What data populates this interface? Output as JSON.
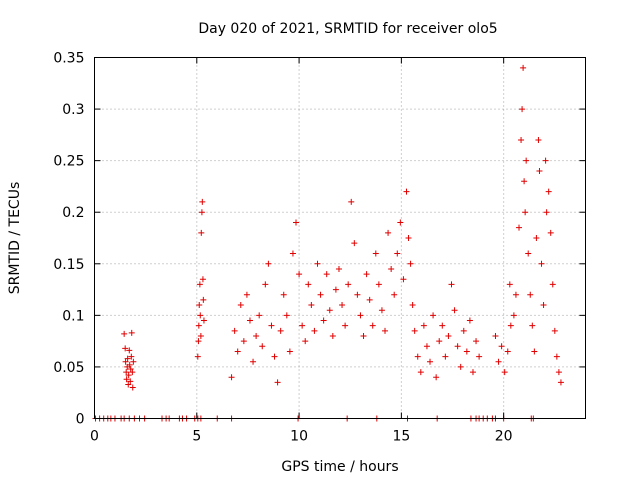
{
  "chart_data": {
    "type": "scatter",
    "title": "Day 020 of 2021, SRMTID for receiver olo5",
    "xlabel": "GPS time / hours",
    "ylabel": "SRMTID / TECUs",
    "xlim": [
      0,
      24
    ],
    "ylim": [
      0,
      0.35
    ],
    "x_ticks": [
      0,
      5,
      10,
      15,
      20
    ],
    "x_tick_labels": [
      "0",
      "5",
      "10",
      "15",
      "20"
    ],
    "y_ticks": [
      0,
      0.05,
      0.1,
      0.15,
      0.2,
      0.25,
      0.3,
      0.35
    ],
    "y_tick_labels": [
      "0",
      "0.05",
      "0.1",
      "0.15",
      "0.2",
      "0.25",
      "0.3",
      "0.35"
    ],
    "grid": true,
    "marker": "+",
    "series_color": "#e00000",
    "series": [
      {
        "name": "SRMTID",
        "points": [
          [
            0.05,
            0
          ],
          [
            0.25,
            0
          ],
          [
            0.45,
            0
          ],
          [
            0.65,
            0
          ],
          [
            0.8,
            0
          ],
          [
            1.0,
            0
          ],
          [
            1.3,
            0
          ],
          [
            1.45,
            0
          ],
          [
            1.7,
            0
          ],
          [
            1.95,
            0
          ],
          [
            2.2,
            0
          ],
          [
            2.45,
            0
          ],
          [
            3.3,
            0
          ],
          [
            3.5,
            0
          ],
          [
            3.65,
            0
          ],
          [
            4.15,
            0
          ],
          [
            4.3,
            0
          ],
          [
            4.5,
            0
          ],
          [
            4.9,
            0
          ],
          [
            5.05,
            0
          ],
          [
            5.2,
            0
          ],
          [
            6.0,
            0
          ],
          [
            6.7,
            0
          ],
          [
            9.95,
            0
          ],
          [
            12.35,
            0
          ],
          [
            13.8,
            0
          ],
          [
            15.3,
            0
          ],
          [
            16.75,
            0
          ],
          [
            18.4,
            0
          ],
          [
            18.65,
            0
          ],
          [
            18.8,
            0
          ],
          [
            19.0,
            0
          ],
          [
            19.2,
            0
          ],
          [
            19.45,
            0
          ],
          [
            19.6,
            0
          ],
          [
            20.0,
            0
          ],
          [
            21.35,
            0
          ],
          [
            21.45,
            0
          ],
          [
            1.45,
            0.082
          ],
          [
            1.5,
            0.068
          ],
          [
            1.52,
            0.055
          ],
          [
            1.55,
            0.045
          ],
          [
            1.57,
            0.038
          ],
          [
            1.6,
            0.05
          ],
          [
            1.62,
            0.058
          ],
          [
            1.65,
            0.033
          ],
          [
            1.67,
            0.042
          ],
          [
            1.7,
            0.066
          ],
          [
            1.72,
            0.052
          ],
          [
            1.75,
            0.036
          ],
          [
            1.77,
            0.048
          ],
          [
            1.8,
            0.06
          ],
          [
            1.82,
            0.083
          ],
          [
            1.85,
            0.045
          ],
          [
            1.87,
            0.03
          ],
          [
            1.9,
            0.055
          ],
          [
            5.05,
            0.06
          ],
          [
            5.08,
            0.075
          ],
          [
            5.1,
            0.09
          ],
          [
            5.12,
            0.11
          ],
          [
            5.15,
            0.13
          ],
          [
            5.17,
            0.1
          ],
          [
            5.2,
            0.08
          ],
          [
            5.22,
            0.18
          ],
          [
            5.25,
            0.2
          ],
          [
            5.27,
            0.21
          ],
          [
            5.3,
            0.135
          ],
          [
            5.32,
            0.115
          ],
          [
            5.35,
            0.095
          ],
          [
            6.7,
            0.04
          ],
          [
            6.85,
            0.085
          ],
          [
            7.0,
            0.065
          ],
          [
            7.15,
            0.11
          ],
          [
            7.3,
            0.075
          ],
          [
            7.45,
            0.12
          ],
          [
            7.6,
            0.095
          ],
          [
            7.75,
            0.055
          ],
          [
            7.9,
            0.08
          ],
          [
            8.05,
            0.1
          ],
          [
            8.2,
            0.07
          ],
          [
            8.35,
            0.13
          ],
          [
            8.5,
            0.15
          ],
          [
            8.65,
            0.09
          ],
          [
            8.8,
            0.06
          ],
          [
            8.95,
            0.035
          ],
          [
            9.1,
            0.085
          ],
          [
            9.25,
            0.12
          ],
          [
            9.4,
            0.1
          ],
          [
            9.55,
            0.065
          ],
          [
            9.7,
            0.16
          ],
          [
            9.85,
            0.19
          ],
          [
            10.0,
            0.14
          ],
          [
            10.15,
            0.09
          ],
          [
            10.3,
            0.075
          ],
          [
            10.45,
            0.13
          ],
          [
            10.6,
            0.11
          ],
          [
            10.75,
            0.085
          ],
          [
            10.9,
            0.15
          ],
          [
            11.05,
            0.12
          ],
          [
            11.2,
            0.095
          ],
          [
            11.35,
            0.14
          ],
          [
            11.5,
            0.105
          ],
          [
            11.65,
            0.08
          ],
          [
            11.8,
            0.125
          ],
          [
            11.95,
            0.145
          ],
          [
            12.1,
            0.11
          ],
          [
            12.25,
            0.09
          ],
          [
            12.4,
            0.13
          ],
          [
            12.55,
            0.21
          ],
          [
            12.7,
            0.17
          ],
          [
            12.85,
            0.12
          ],
          [
            13.0,
            0.1
          ],
          [
            13.15,
            0.08
          ],
          [
            13.3,
            0.14
          ],
          [
            13.45,
            0.115
          ],
          [
            13.6,
            0.09
          ],
          [
            13.75,
            0.16
          ],
          [
            13.9,
            0.13
          ],
          [
            14.05,
            0.105
          ],
          [
            14.2,
            0.085
          ],
          [
            14.35,
            0.18
          ],
          [
            14.5,
            0.145
          ],
          [
            14.65,
            0.12
          ],
          [
            14.8,
            0.16
          ],
          [
            14.95,
            0.19
          ],
          [
            15.1,
            0.135
          ],
          [
            15.25,
            0.22
          ],
          [
            15.35,
            0.175
          ],
          [
            15.45,
            0.15
          ],
          [
            15.55,
            0.11
          ],
          [
            15.65,
            0.085
          ],
          [
            15.8,
            0.06
          ],
          [
            15.95,
            0.045
          ],
          [
            16.1,
            0.09
          ],
          [
            16.25,
            0.07
          ],
          [
            16.4,
            0.055
          ],
          [
            16.55,
            0.1
          ],
          [
            16.7,
            0.04
          ],
          [
            16.85,
            0.075
          ],
          [
            17.0,
            0.09
          ],
          [
            17.15,
            0.06
          ],
          [
            17.3,
            0.08
          ],
          [
            17.45,
            0.13
          ],
          [
            17.6,
            0.105
          ],
          [
            17.75,
            0.07
          ],
          [
            17.9,
            0.05
          ],
          [
            18.05,
            0.085
          ],
          [
            18.2,
            0.065
          ],
          [
            18.35,
            0.095
          ],
          [
            18.5,
            0.045
          ],
          [
            18.65,
            0.075
          ],
          [
            18.8,
            0.06
          ],
          [
            19.6,
            0.08
          ],
          [
            19.75,
            0.055
          ],
          [
            19.9,
            0.07
          ],
          [
            20.05,
            0.045
          ],
          [
            20.2,
            0.065
          ],
          [
            20.3,
            0.13
          ],
          [
            20.35,
            0.09
          ],
          [
            20.5,
            0.1
          ],
          [
            20.6,
            0.12
          ],
          [
            20.75,
            0.185
          ],
          [
            20.85,
            0.27
          ],
          [
            20.9,
            0.3
          ],
          [
            20.95,
            0.34
          ],
          [
            21.0,
            0.23
          ],
          [
            21.05,
            0.2
          ],
          [
            21.1,
            0.25
          ],
          [
            21.2,
            0.16
          ],
          [
            21.3,
            0.12
          ],
          [
            21.4,
            0.09
          ],
          [
            21.5,
            0.065
          ],
          [
            21.6,
            0.175
          ],
          [
            21.7,
            0.27
          ],
          [
            21.75,
            0.24
          ],
          [
            21.85,
            0.15
          ],
          [
            21.95,
            0.11
          ],
          [
            22.05,
            0.25
          ],
          [
            22.1,
            0.2
          ],
          [
            22.2,
            0.22
          ],
          [
            22.3,
            0.18
          ],
          [
            22.4,
            0.13
          ],
          [
            22.5,
            0.085
          ],
          [
            22.6,
            0.06
          ],
          [
            22.7,
            0.045
          ],
          [
            22.8,
            0.035
          ]
        ]
      }
    ]
  }
}
